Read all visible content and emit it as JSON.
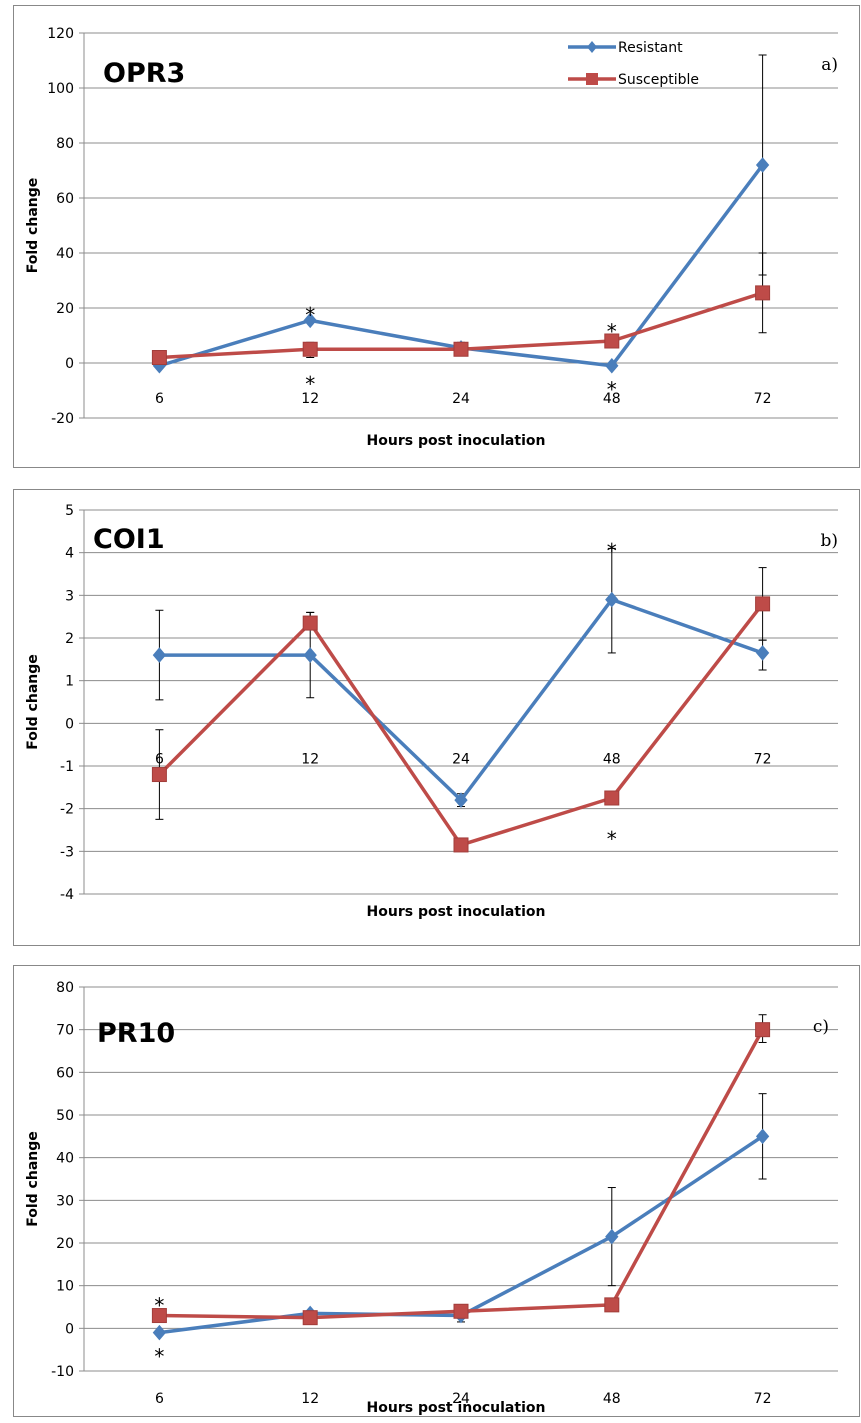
{
  "chart_data": [
    {
      "type": "line",
      "title": "OPR3",
      "panel_label": "a)",
      "xlabel": "Hours post inoculation",
      "ylabel": "Fold change",
      "categories": [
        "6",
        "12",
        "24",
        "48",
        "72"
      ],
      "ylim": [
        -20,
        120
      ],
      "yticks": [
        "-20",
        "0",
        "20",
        "40",
        "60",
        "80",
        "100",
        "120"
      ],
      "grid": true,
      "legend": "top-right",
      "colors": {
        "Resistant": "#4a7ebb",
        "Susceptible": "#be4b48"
      },
      "series": [
        {
          "name": "Resistant",
          "marker": "diamond",
          "values": [
            -1,
            15.5,
            5.5,
            -1,
            72
          ],
          "err_low": [
            -1,
            15.5,
            3,
            -1,
            32
          ],
          "err_high": [
            -1,
            15.5,
            7.5,
            -1,
            112
          ]
        },
        {
          "name": "Susceptible",
          "marker": "square",
          "values": [
            2,
            5,
            5,
            8,
            25.5
          ],
          "err_low": [
            2,
            2,
            3,
            8,
            11
          ],
          "err_high": [
            2,
            7.5,
            7,
            8,
            40
          ]
        }
      ],
      "annotations": [
        {
          "category": "12",
          "value": 20,
          "text": "*"
        },
        {
          "category": "12",
          "value": -5,
          "text": "*"
        },
        {
          "category": "48",
          "value": 14,
          "text": "*"
        },
        {
          "category": "48",
          "value": -7,
          "text": "*"
        }
      ]
    },
    {
      "type": "line",
      "title": "COI1",
      "panel_label": "b)",
      "xlabel": "Hours post inoculation",
      "ylabel": "Fold change",
      "categories": [
        "6",
        "12",
        "24",
        "48",
        "72"
      ],
      "ylim": [
        -4,
        5
      ],
      "yticks": [
        "-4",
        "-3",
        "-2",
        "-1",
        "0",
        "1",
        "2",
        "3",
        "4",
        "5"
      ],
      "grid": true,
      "colors": {
        "Resistant": "#4a7ebb",
        "Susceptible": "#be4b48"
      },
      "series": [
        {
          "name": "Resistant",
          "marker": "diamond",
          "values": [
            1.6,
            1.6,
            -1.8,
            2.9,
            1.65
          ],
          "err_low": [
            0.55,
            0.6,
            -1.95,
            1.65,
            1.25
          ],
          "err_high": [
            2.65,
            2.6,
            -1.65,
            4.1,
            1.95
          ]
        },
        {
          "name": "Susceptible",
          "marker": "square",
          "values": [
            -1.2,
            2.35,
            -2.85,
            -1.75,
            2.8
          ],
          "err_low": [
            -2.25,
            2.35,
            -2.85,
            -1.75,
            1.95
          ],
          "err_high": [
            -0.15,
            2.6,
            -2.85,
            -1.75,
            3.65
          ]
        }
      ],
      "annotations": [
        {
          "category": "48",
          "value": 4.2,
          "text": "*"
        },
        {
          "category": "48",
          "value": -2.55,
          "text": "*"
        }
      ]
    },
    {
      "type": "line",
      "title": "PR10",
      "panel_label": "c)",
      "xlabel": "Hours post inoculation",
      "ylabel": "Fold change",
      "categories": [
        "6",
        "12",
        "24",
        "48",
        "72"
      ],
      "ylim": [
        -10,
        80
      ],
      "yticks": [
        "-10",
        "0",
        "10",
        "20",
        "30",
        "40",
        "50",
        "60",
        "70",
        "80"
      ],
      "grid": true,
      "colors": {
        "Resistant": "#4a7ebb",
        "Susceptible": "#be4b48"
      },
      "series": [
        {
          "name": "Resistant",
          "marker": "diamond",
          "values": [
            -1,
            3.5,
            3,
            21.5,
            45
          ],
          "err_low": [
            -1,
            3.5,
            1.5,
            10,
            35
          ],
          "err_high": [
            -1,
            3.5,
            4.5,
            33,
            55
          ]
        },
        {
          "name": "Susceptible",
          "marker": "square",
          "values": [
            3,
            2.5,
            4,
            5.5,
            70
          ],
          "err_low": [
            3,
            2.5,
            4,
            5.5,
            67
          ],
          "err_high": [
            3,
            2.5,
            4,
            5.5,
            73.5
          ]
        }
      ],
      "annotations": [
        {
          "category": "6",
          "value": 7,
          "text": "*"
        },
        {
          "category": "6",
          "value": -5,
          "text": "*"
        }
      ]
    }
  ]
}
